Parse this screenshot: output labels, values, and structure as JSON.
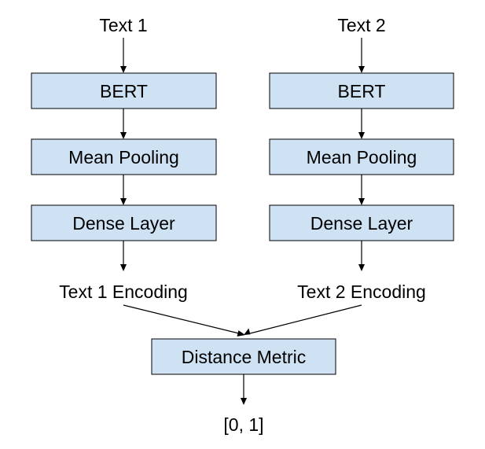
{
  "diagram": {
    "colors": {
      "box_fill": "#cfe2f3",
      "box_stroke": "#000000",
      "arrow": "#000000"
    },
    "left": {
      "input": "Text 1",
      "bert": "BERT",
      "pooling": "Mean Pooling",
      "dense": "Dense Layer",
      "encoding": "Text 1 Encoding"
    },
    "right": {
      "input": "Text 2",
      "bert": "BERT",
      "pooling": "Mean Pooling",
      "dense": "Dense Layer",
      "encoding": "Text 2 Encoding"
    },
    "metric": "Distance Metric",
    "output": "[0, 1]"
  }
}
